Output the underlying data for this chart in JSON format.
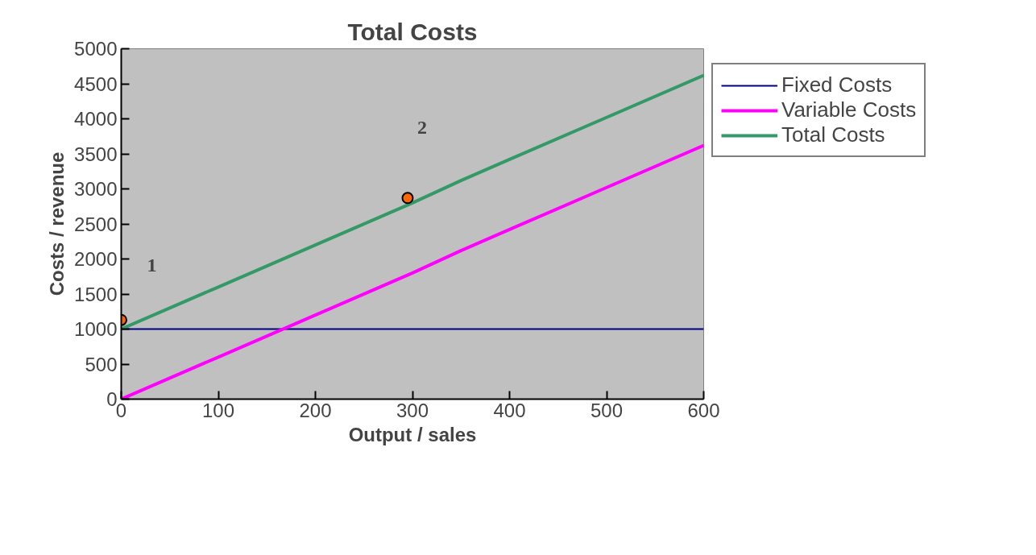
{
  "chart_data": {
    "type": "line",
    "title": "Total Costs",
    "xlabel": "Output / sales",
    "ylabel": "Costs / revenue",
    "x": [
      0,
      100,
      200,
      300,
      350,
      400,
      500,
      600
    ],
    "series": [
      {
        "name": "Fixed Costs",
        "color": "#000080",
        "values": [
          1000,
          1000,
          1000,
          1000,
          1000,
          1000,
          1000,
          1000
        ]
      },
      {
        "name": "Variable Costs",
        "color": "#ff00ff",
        "values": [
          0,
          600,
          1200,
          1800,
          2120,
          2420,
          3020,
          3620
        ]
      },
      {
        "name": "Total Costs",
        "color": "#339966",
        "values": [
          1000,
          1600,
          2200,
          2800,
          3120,
          3420,
          4020,
          4620
        ]
      },
      {
        "type": "scatter",
        "color": "#ff6600",
        "x": [
          0,
          295
        ],
        "values": [
          1130,
          2870
        ]
      }
    ],
    "annotations": [
      "1",
      "2"
    ],
    "xlim": [
      0,
      600
    ],
    "xticks": [
      0,
      100,
      200,
      300,
      400,
      500,
      600
    ],
    "ylim": [
      0,
      5000
    ],
    "yticks": [
      0,
      500,
      1000,
      1500,
      2000,
      2500,
      3000,
      3500,
      4000,
      4500,
      5000
    ],
    "grid": false,
    "legend": "top right"
  }
}
